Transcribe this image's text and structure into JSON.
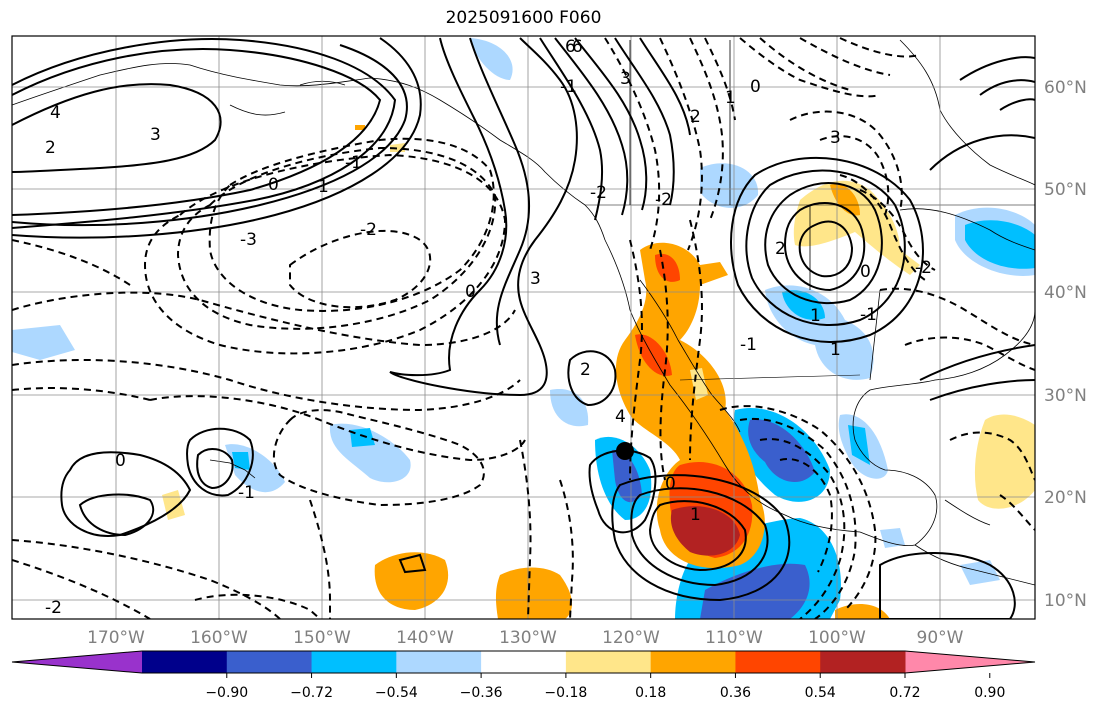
{
  "title": "2025091600 F060",
  "longitude_labels": [
    "170°W",
    "160°W",
    "150°W",
    "140°W",
    "130°W",
    "120°W",
    "110°W",
    "100°W",
    "90°W"
  ],
  "latitude_labels": [
    "60°N",
    "50°N",
    "40°N",
    "30°N",
    "20°N",
    "10°N"
  ],
  "contour_labels": [
    "6",
    "4",
    "3",
    "2",
    "0",
    "-1",
    "-2",
    "-3",
    "1",
    "0",
    "-1",
    "-2",
    "6",
    "3",
    "2",
    "1",
    "0",
    "3",
    "-2",
    "-1",
    "2",
    "1",
    "0",
    "-2",
    "2",
    "3",
    "4",
    "0",
    "1",
    "-1",
    "1",
    "0",
    "-1",
    "-2"
  ],
  "colorbar": {
    "colors": [
      "#9932cc",
      "#00008b",
      "#3a5fcd",
      "#00bfff",
      "#add8ff",
      "#ffffff",
      "#ffe68a",
      "#ffa500",
      "#ff4500",
      "#b22222",
      "#ff88aa"
    ],
    "tick_labels": [
      "−0.90",
      "−0.72",
      "−0.54",
      "−0.36",
      "−0.18",
      "0.18",
      "0.36",
      "0.54",
      "0.72",
      "0.90"
    ]
  },
  "marker": {
    "lon": -120,
    "lat": 24
  }
}
